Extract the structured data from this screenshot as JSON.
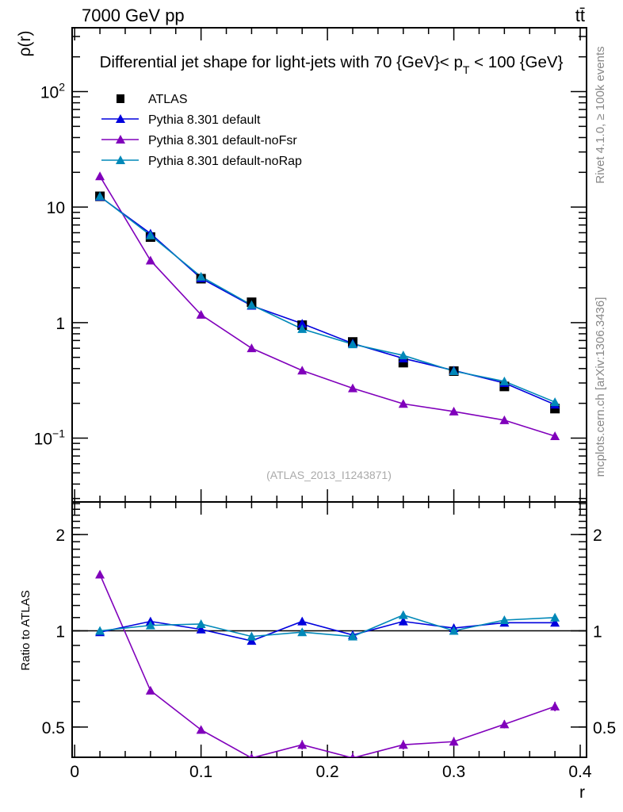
{
  "header": {
    "left": "7000 GeV pp",
    "right": "tt̄"
  },
  "side": {
    "rivet": "Rivet 4.1.0, ≥ 100k events",
    "mcplots": "mcplots.cern.ch [arXiv:1306.3436]"
  },
  "watermark": "(ATLAS_2013_I1243871)",
  "colors": {
    "ATLAS": "#000000",
    "default": "#0000dd",
    "noFsr": "#8000bb",
    "noRap": "#0088b8"
  },
  "chart_data": [
    {
      "type": "line",
      "title_main": "Differential jet shape for light-jets with 70 {GeV}< p",
      "title_sub": "T",
      "title_end": " < 100 {GeV}",
      "ylabel": "ρ(r)",
      "yscale": "log",
      "ylim": [
        0.028,
        357
      ],
      "xlim": [
        -0.002,
        0.405
      ],
      "yticks": [
        {
          "v": 0.1,
          "base": "10",
          "exp": "−1"
        },
        {
          "v": 1,
          "label": "1"
        },
        {
          "v": 10,
          "label": "10"
        },
        {
          "v": 100,
          "base": "10",
          "exp": "2"
        }
      ],
      "x": [
        0.02,
        0.06,
        0.1,
        0.14,
        0.18,
        0.22,
        0.26,
        0.3,
        0.34,
        0.38
      ],
      "legend_position": "top-left",
      "series": [
        {
          "key": "ATLAS",
          "name": "ATLAS",
          "marker": "square",
          "values": [
            12.4,
            5.5,
            2.4,
            1.5,
            0.95,
            0.68,
            0.45,
            0.38,
            0.28,
            0.18
          ]
        },
        {
          "key": "default",
          "name": "Pythia 8.301 default",
          "marker": "triangle",
          "values": [
            12.3,
            5.9,
            2.42,
            1.4,
            0.98,
            0.66,
            0.49,
            0.385,
            0.3,
            0.195
          ]
        },
        {
          "key": "noFsr",
          "name": "Pythia 8.301 default-noFsr",
          "marker": "triangle",
          "values": [
            18.5,
            3.45,
            1.17,
            0.6,
            0.385,
            0.27,
            0.198,
            0.17,
            0.143,
            0.104
          ]
        },
        {
          "key": "noRap",
          "name": "Pythia 8.301 default-noRap",
          "marker": "triangle",
          "values": [
            12.4,
            5.7,
            2.5,
            1.42,
            0.88,
            0.65,
            0.52,
            0.38,
            0.31,
            0.205
          ]
        }
      ]
    },
    {
      "type": "line",
      "ylabel": "Ratio to ATLAS",
      "xlabel": "r",
      "yscale": "log",
      "ylim": [
        0.402,
        2.53
      ],
      "xlim": [
        -0.002,
        0.405
      ],
      "yticks": [
        {
          "v": 0.5,
          "label": "0.5"
        },
        {
          "v": 1,
          "label": "1"
        },
        {
          "v": 2,
          "label": "2"
        }
      ],
      "xticks": [
        {
          "v": 0,
          "label": "0"
        },
        {
          "v": 0.1,
          "label": "0.1"
        },
        {
          "v": 0.2,
          "label": "0.2"
        },
        {
          "v": 0.3,
          "label": "0.3"
        },
        {
          "v": 0.4,
          "label": "0.4"
        }
      ],
      "x": [
        0.02,
        0.06,
        0.1,
        0.14,
        0.18,
        0.22,
        0.26,
        0.3,
        0.34,
        0.38
      ],
      "series": [
        {
          "key": "default",
          "name": "Pythia 8.301 default",
          "values": [
            0.99,
            1.07,
            1.01,
            0.93,
            1.07,
            0.97,
            1.07,
            1.02,
            1.06,
            1.06
          ],
          "errors": [
            0.01,
            0.02,
            0.015,
            0.02,
            0.03,
            0.03,
            0.03,
            0.03,
            0.02,
            0.02
          ]
        },
        {
          "key": "noFsr",
          "name": "Pythia 8.301 default-noFsr",
          "values": [
            1.5,
            0.65,
            0.49,
            0.4,
            0.44,
            0.4,
            0.44,
            0.45,
            0.51,
            0.58
          ],
          "errors": [
            0.01,
            0.01,
            0.01,
            0.01,
            0.015,
            0.015,
            0.015,
            0.015,
            0.015,
            0.02
          ]
        },
        {
          "key": "noRap",
          "name": "Pythia 8.301 default-noRap",
          "values": [
            1.0,
            1.04,
            1.05,
            0.96,
            0.99,
            0.96,
            1.12,
            1.0,
            1.08,
            1.1
          ],
          "errors": [
            0.01,
            0.02,
            0.02,
            0.02,
            0.025,
            0.025,
            0.03,
            0.02,
            0.025,
            0.025
          ]
        }
      ]
    }
  ]
}
